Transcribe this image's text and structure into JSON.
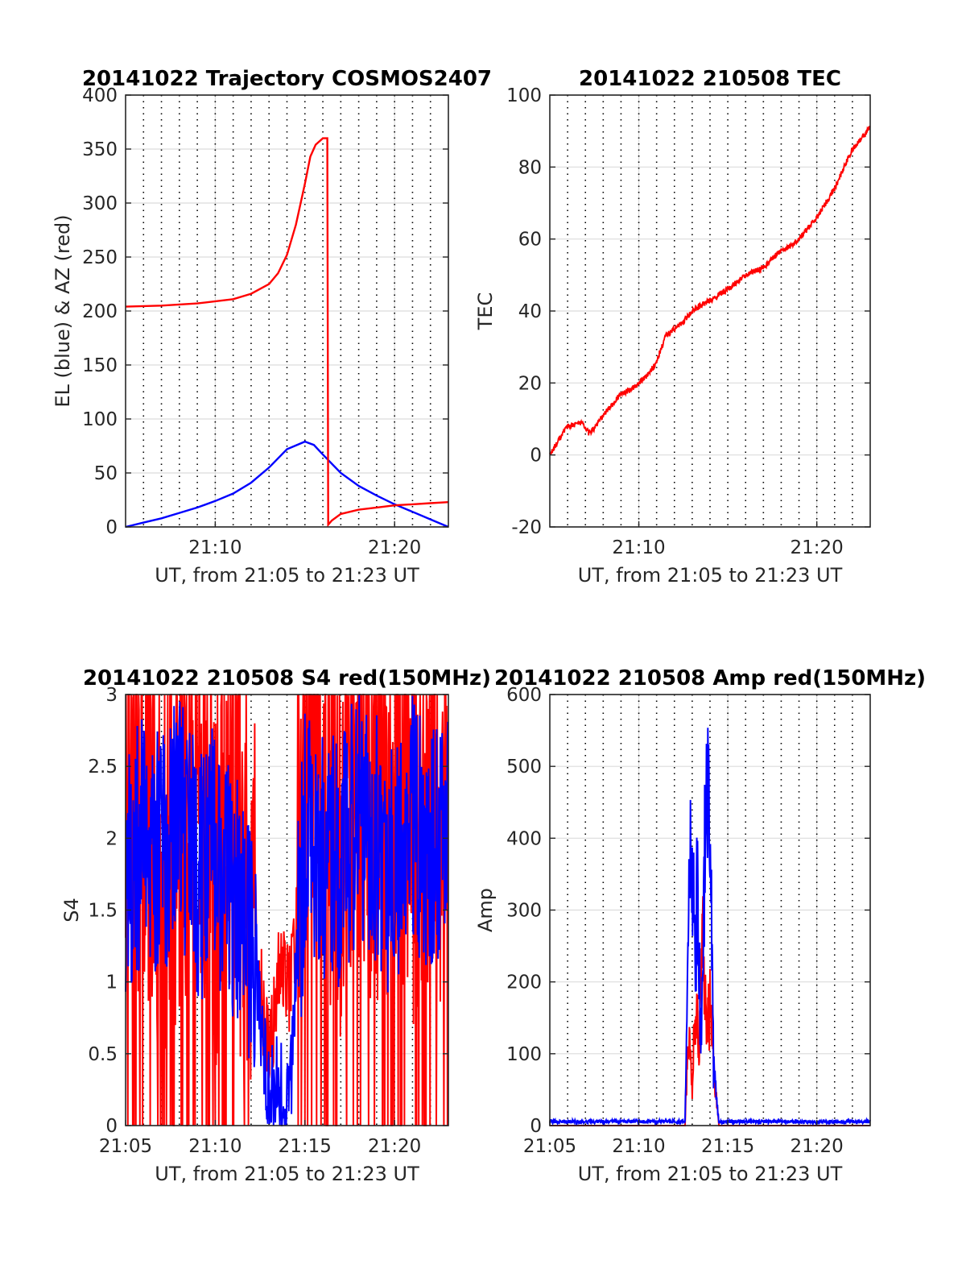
{
  "colors": {
    "elevation": "#0000ff",
    "azimuth": "#ff0000",
    "s4_red": "#ff0000",
    "s4_blue": "#0000ff",
    "amp_red": "#ff0000",
    "amp_blue": "#0000ff",
    "tec": "#ff0000"
  },
  "chart_data": [
    {
      "id": "trajectory",
      "type": "line",
      "title": "20141022 Trajectory COSMOS2407",
      "xlabel": "UT, from 21:05 to 21:23 UT",
      "ylabel": "EL (blue) & AZ (red)",
      "xlim_minutes_ut": [
        1265,
        1283
      ],
      "ylim": [
        0,
        400
      ],
      "yticks": [
        0,
        50,
        100,
        150,
        200,
        250,
        300,
        350,
        400
      ],
      "xticks": [
        {
          "t": 1270,
          "label": "21:10"
        },
        {
          "t": 1280,
          "label": "21:20"
        }
      ],
      "grid": true,
      "series": [
        {
          "name": "EL",
          "x": [
            1265,
            1266,
            1267,
            1268,
            1269,
            1270,
            1271,
            1272,
            1273,
            1274,
            1275,
            1275.5,
            1276,
            1277,
            1278,
            1279,
            1280,
            1281,
            1282,
            1283
          ],
          "y": [
            0,
            4,
            8,
            13,
            18,
            24,
            31,
            41,
            55,
            72,
            79,
            76,
            67,
            50,
            38,
            29,
            21,
            14,
            7,
            0
          ]
        },
        {
          "name": "AZ",
          "x": [
            1265,
            1267,
            1269,
            1271,
            1272,
            1273,
            1273.5,
            1274,
            1274.5,
            1275,
            1275.3,
            1275.6,
            1276,
            1276.25,
            1276.3,
            1276.5,
            1277,
            1278,
            1279,
            1280,
            1281,
            1282,
            1283
          ],
          "y": [
            204,
            205,
            207,
            211,
            216,
            225,
            235,
            252,
            280,
            318,
            343,
            354,
            360,
            360,
            2,
            6,
            12,
            16,
            18,
            20,
            21,
            22,
            23
          ]
        }
      ]
    },
    {
      "id": "tec",
      "type": "line",
      "title": "20141022 210508 TEC",
      "xlabel": "UT, from 21:05 to 21:23 UT",
      "ylabel": "TEC",
      "xlim_minutes_ut": [
        1265,
        1283
      ],
      "ylim": [
        -20,
        100
      ],
      "yticks": [
        -20,
        0,
        20,
        40,
        60,
        80,
        100
      ],
      "xticks": [
        {
          "t": 1270,
          "label": "21:10"
        },
        {
          "t": 1280,
          "label": "21:20"
        }
      ],
      "grid": true,
      "series": [
        {
          "name": "TEC",
          "x": [
            1265,
            1265.5,
            1266,
            1266.8,
            1267.2,
            1267.6,
            1268,
            1268.5,
            1269,
            1269.5,
            1270,
            1270.5,
            1271,
            1271.5,
            1272,
            1272.5,
            1273,
            1274,
            1275,
            1276,
            1277,
            1278,
            1278.5,
            1279,
            1280,
            1281,
            1282,
            1283
          ],
          "y": [
            0,
            4,
            8,
            9,
            6,
            8,
            11,
            14,
            17,
            18,
            20,
            22,
            26,
            33,
            35,
            37,
            40,
            43,
            46,
            50,
            52,
            57,
            58,
            60,
            66,
            74,
            85,
            91
          ]
        }
      ]
    },
    {
      "id": "s4",
      "type": "line",
      "title": "20141022 210508 S4 red(150MHz)",
      "xlabel": "UT, from 21:05 to 21:23 UT",
      "ylabel": "S4",
      "xlim_minutes_ut": [
        1265,
        1283
      ],
      "ylim": [
        0,
        3
      ],
      "yticks": [
        0,
        0.5,
        1,
        1.5,
        2,
        2.5,
        3
      ],
      "xticks": [
        {
          "t": 1265,
          "label": "21:05"
        },
        {
          "t": 1270,
          "label": "21:10"
        },
        {
          "t": 1275,
          "label": "21:15"
        },
        {
          "t": 1280,
          "label": "21:20"
        }
      ],
      "grid": true,
      "series": [
        {
          "name": "red",
          "x": [
            1265,
            1266,
            1267,
            1268,
            1269,
            1270,
            1271,
            1272,
            1272.3,
            1272.8,
            1273.2,
            1273.6,
            1274,
            1274.5,
            1275,
            1275.3,
            1276,
            1277,
            1278,
            1279,
            1280,
            1281,
            1282,
            1283
          ],
          "y": [
            2.2,
            2.6,
            2.0,
            2.3,
            2.5,
            1.9,
            2.4,
            1.6,
            1.1,
            0.7,
            0.6,
            1.2,
            0.9,
            1.3,
            2.4,
            2.8,
            2.5,
            2.1,
            2.7,
            2.3,
            2.6,
            2.2,
            2.5,
            2.1
          ]
        },
        {
          "name": "blue",
          "x": [
            1265,
            1266,
            1267,
            1268,
            1269,
            1270,
            1271,
            1272,
            1272.3,
            1272.7,
            1273,
            1273.5,
            1274,
            1274.2,
            1274.6,
            1275,
            1276,
            1277,
            1278,
            1279,
            1280,
            1281,
            1282,
            1283
          ],
          "y": [
            1.6,
            2.1,
            1.8,
            2.2,
            1.7,
            1.9,
            1.6,
            1.3,
            1.1,
            0.5,
            0.2,
            0.3,
            0.1,
            0.3,
            1.2,
            2.0,
            1.9,
            1.8,
            2.2,
            2.0,
            1.7,
            2.1,
            1.9,
            2.0
          ]
        }
      ]
    },
    {
      "id": "amp",
      "type": "line",
      "title": "20141022 210508 Amp red(150MHz)",
      "xlabel": "UT, from 21:05 to 21:23 UT",
      "ylabel": "Amp",
      "xlim_minutes_ut": [
        1265,
        1283
      ],
      "ylim": [
        0,
        600
      ],
      "yticks": [
        0,
        100,
        200,
        300,
        400,
        500,
        600
      ],
      "xticks": [
        {
          "t": 1265,
          "label": "21:05"
        },
        {
          "t": 1270,
          "label": "21:10"
        },
        {
          "t": 1275,
          "label": "21:15"
        },
        {
          "t": 1280,
          "label": "21:20"
        }
      ],
      "grid": true,
      "series": [
        {
          "name": "red",
          "x": [
            1265,
            1272.6,
            1272.8,
            1273,
            1273.2,
            1273.4,
            1273.6,
            1273.8,
            1274,
            1274.2,
            1274.5,
            1283
          ],
          "y": [
            0,
            0,
            180,
            60,
            220,
            120,
            350,
            140,
            200,
            90,
            0,
            0
          ]
        },
        {
          "name": "blue",
          "x": [
            1265,
            1272.6,
            1272.8,
            1273,
            1273.15,
            1273.3,
            1273.5,
            1273.7,
            1273.9,
            1274.05,
            1274.2,
            1274.5,
            1283
          ],
          "y": [
            3,
            3,
            330,
            470,
            280,
            380,
            120,
            420,
            530,
            460,
            90,
            3,
            3
          ]
        }
      ]
    }
  ]
}
